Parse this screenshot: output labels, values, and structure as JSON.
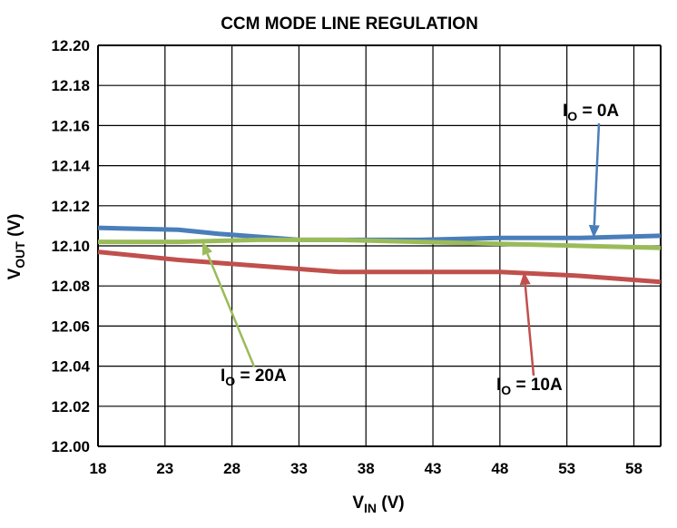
{
  "chart_data": {
    "type": "line",
    "title": "CCM MODE LINE REGULATION",
    "xlabel": {
      "main": "V",
      "sub": "IN",
      "unit": " (V)"
    },
    "ylabel": {
      "main": "V",
      "sub": "OUT",
      "unit": " (V)"
    },
    "xlim": [
      18,
      60
    ],
    "ylim": [
      12.0,
      12.2
    ],
    "x_ticks": [
      18,
      23,
      28,
      33,
      38,
      43,
      48,
      53,
      58
    ],
    "x_tick_labels": [
      "18",
      "23",
      "28",
      "33",
      "38",
      "43",
      "48",
      "53",
      "58"
    ],
    "y_ticks": [
      12.0,
      12.02,
      12.04,
      12.06,
      12.08,
      12.1,
      12.12,
      12.14,
      12.16,
      12.18,
      12.2
    ],
    "y_tick_labels": [
      "12.00",
      "12.02",
      "12.04",
      "12.06",
      "12.08",
      "12.10",
      "12.12",
      "12.14",
      "12.16",
      "12.18",
      "12.20"
    ],
    "grid": true,
    "series": [
      {
        "name": "IO = 0A",
        "label": {
          "main": "I",
          "sub": "O",
          "rest": " = 0A"
        },
        "color": "#4a7ebb",
        "x": [
          18,
          24,
          27,
          33,
          36,
          42,
          48,
          54,
          60
        ],
        "y": [
          12.109,
          12.108,
          12.106,
          12.103,
          12.103,
          12.103,
          12.104,
          12.104,
          12.105
        ]
      },
      {
        "name": "IO = 10A",
        "label": {
          "main": "I",
          "sub": "O",
          "rest": " = 10A"
        },
        "color": "#c0504d",
        "x": [
          18,
          24,
          30,
          36,
          42,
          48,
          54,
          60
        ],
        "y": [
          12.097,
          12.093,
          12.09,
          12.087,
          12.087,
          12.087,
          12.085,
          12.082
        ]
      },
      {
        "name": "IO = 20A",
        "label": {
          "main": "I",
          "sub": "O",
          "rest": " = 20A"
        },
        "color": "#9bbb59",
        "x": [
          18,
          24,
          30,
          36,
          42,
          48,
          54,
          60
        ],
        "y": [
          12.102,
          12.102,
          12.103,
          12.103,
          12.102,
          12.101,
          12.1,
          12.099
        ]
      }
    ],
    "annotations": [
      {
        "series": 0,
        "arrow_to": [
          55,
          12.104
        ]
      },
      {
        "series": 1,
        "arrow_to": [
          49.8,
          12.087
        ]
      },
      {
        "series": 2,
        "arrow_to": [
          25.8,
          12.102
        ]
      }
    ]
  }
}
